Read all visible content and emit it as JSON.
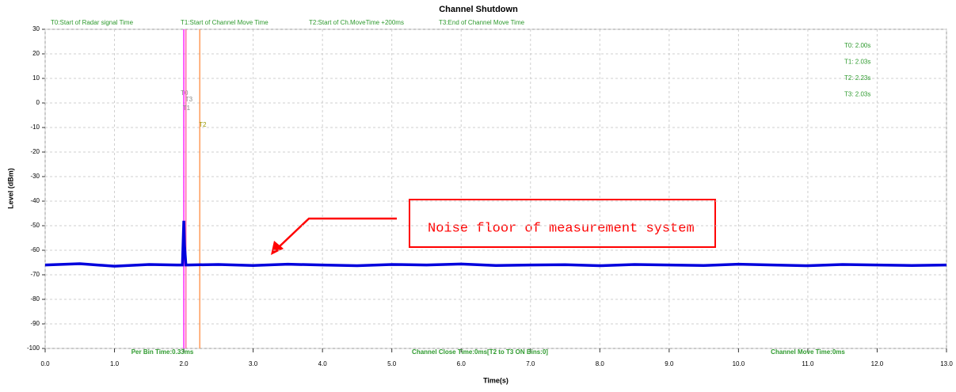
{
  "chart_data": {
    "type": "line",
    "title": "Channel Shutdown",
    "x_label": "Time(s)",
    "y_label": "Level (dBm)",
    "xlim": [
      0,
      13
    ],
    "ylim": [
      -100,
      30
    ],
    "xticks": [
      {
        "value": 0,
        "label": "0.0"
      },
      {
        "value": 1,
        "label": "1.0"
      },
      {
        "value": 2,
        "label": "2.0"
      },
      {
        "value": 3,
        "label": "3.0"
      },
      {
        "value": 4,
        "label": "4.0"
      },
      {
        "value": 5,
        "label": "5.0"
      },
      {
        "value": 6,
        "label": "6.0"
      },
      {
        "value": 7,
        "label": "7.0"
      },
      {
        "value": 8,
        "label": "8.0"
      },
      {
        "value": 9,
        "label": "9.0"
      },
      {
        "value": 10,
        "label": "10.0"
      },
      {
        "value": 11,
        "label": "11.0"
      },
      {
        "value": 12,
        "label": "12.0"
      },
      {
        "value": 13,
        "label": "13.0"
      }
    ],
    "yticks": [
      30,
      20,
      10,
      0,
      -10,
      -20,
      -30,
      -40,
      -50,
      -60,
      -70,
      -80,
      -90,
      -100
    ],
    "grid": true,
    "x": [
      0,
      0.5,
      1,
      1.5,
      1.9,
      1.98,
      2.0,
      2.01,
      2.03,
      2.05,
      2.5,
      3,
      3.5,
      4,
      4.5,
      5,
      5.5,
      6,
      6.5,
      7,
      7.5,
      8,
      8.5,
      9,
      9.5,
      10,
      10.5,
      11,
      11.5,
      12,
      12.5,
      13
    ],
    "series": [
      {
        "name": "Level",
        "color": "#0000dd",
        "values": [
          -66,
          -65.5,
          -66.5,
          -65.8,
          -66,
          -66,
          -48,
          -58,
          -66,
          -66,
          -65.8,
          -66.2,
          -65.7,
          -66,
          -66.3,
          -65.8,
          -66,
          -65.6,
          -66.2,
          -66,
          -65.9,
          -66.3,
          -65.8,
          -66,
          -66.2,
          -65.7,
          -66,
          -66.3,
          -65.8,
          -66,
          -66.2,
          -66
        ]
      }
    ],
    "markers": [
      {
        "name": "T0",
        "x": 2.0,
        "color": "#ff00ff"
      },
      {
        "name": "T3",
        "x": 2.03,
        "color": "#ff66aa"
      },
      {
        "name": "T1",
        "x": 2.03,
        "color": "#ff66aa"
      },
      {
        "name": "T2",
        "x": 2.23,
        "color": "#ff8c40"
      }
    ],
    "marker_legend": [
      "T0:Start of Radar signal Time",
      "T1:Start of Channel Move Time",
      "T2:Start of Ch.MoveTime +200ms",
      "T3:End of Channel Move Time"
    ],
    "marker_readout": [
      "T0: 2.00s",
      "T1: 2.03s",
      "T2: 2.23s",
      "T3: 2.03s"
    ],
    "footer": [
      "Per Bin Time:0.33ms",
      "Channel Close Time:0ms[T2 to T3 ON Bins:0]",
      "Channel Move Time:0ms"
    ],
    "annotation": "Noise floor of measurement system"
  }
}
